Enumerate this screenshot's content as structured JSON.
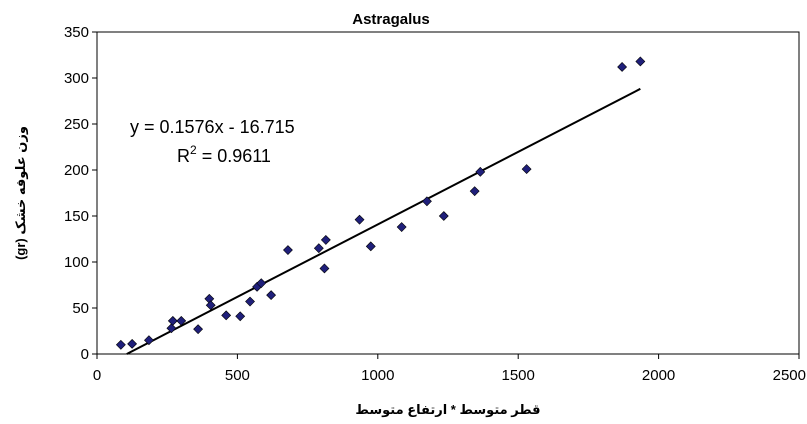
{
  "chart_data": {
    "type": "scatter",
    "title": "Astragalus",
    "xlabel": "قطر متوسط * ارتفاع متوسط",
    "ylabel": "وزن علوفه خشک (gr)",
    "xlim": [
      0,
      2500
    ],
    "ylim": [
      0,
      350
    ],
    "x_ticks": [
      0,
      500,
      1000,
      1500,
      2000,
      2500
    ],
    "y_ticks": [
      0,
      50,
      100,
      150,
      200,
      250,
      300,
      350
    ],
    "grid": false,
    "legend": "none",
    "marker_color": "#1f1f7a",
    "line_color": "#000000",
    "series": [
      {
        "points": [
          [
            85,
            10
          ],
          [
            125,
            11
          ],
          [
            185,
            15
          ],
          [
            265,
            28
          ],
          [
            270,
            36
          ],
          [
            300,
            36
          ],
          [
            360,
            27
          ],
          [
            400,
            60
          ],
          [
            405,
            53
          ],
          [
            460,
            42
          ],
          [
            510,
            41
          ],
          [
            545,
            57
          ],
          [
            570,
            73
          ],
          [
            585,
            77
          ],
          [
            620,
            64
          ],
          [
            680,
            113
          ],
          [
            790,
            115
          ],
          [
            810,
            93
          ],
          [
            815,
            124
          ],
          [
            935,
            146
          ],
          [
            975,
            117
          ],
          [
            1085,
            138
          ],
          [
            1175,
            166
          ],
          [
            1235,
            150
          ],
          [
            1345,
            177
          ],
          [
            1365,
            198
          ],
          [
            1530,
            201
          ],
          [
            1870,
            312
          ],
          [
            1935,
            318
          ]
        ]
      }
    ],
    "trendline": {
      "slope": 0.1576,
      "intercept": -16.715,
      "x_range": [
        106,
        1935
      ]
    },
    "annotations": {
      "equation": "y = 0.1576x - 16.715",
      "r2_prefix": "R",
      "r2_exp": "2",
      "r2_value": " = 0.9611"
    }
  }
}
